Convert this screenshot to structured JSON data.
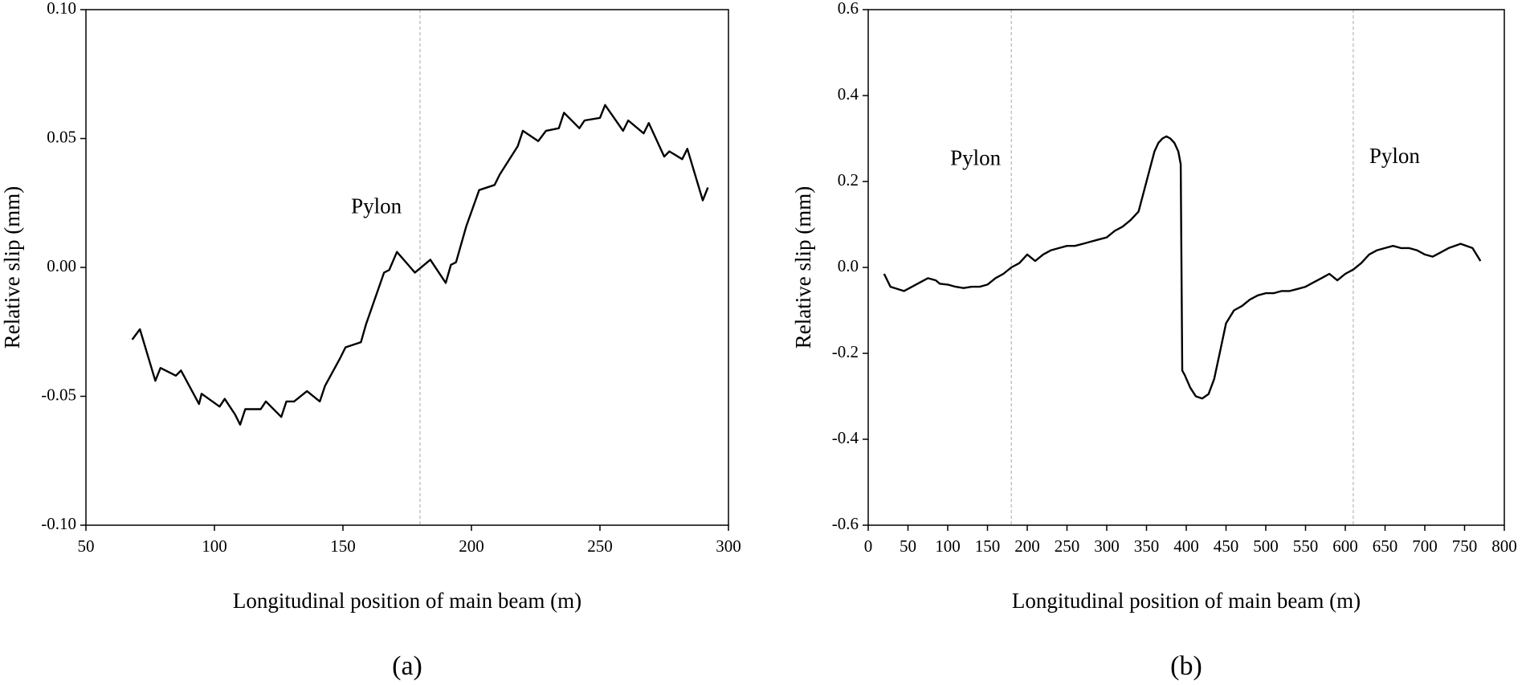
{
  "chart_data": [
    {
      "type": "line",
      "caption": "(a)",
      "x_label": "Longitudinal position of main beam (m)",
      "y_label": "Relative slip (mm)",
      "xlim": [
        50,
        300
      ],
      "xticks": [
        50,
        100,
        150,
        200,
        250,
        300
      ],
      "ylim": [
        -0.1,
        0.1
      ],
      "yticks": [
        {
          "value": -0.1,
          "label": "-0.10"
        },
        -0.05,
        {
          "value": 0,
          "label": "0.00"
        },
        0.05,
        {
          "value": 0.1,
          "label": "0.10"
        }
      ],
      "color": "#000000",
      "x": [
        68,
        71,
        77,
        79,
        85,
        87,
        94,
        95,
        102,
        104,
        108,
        110,
        112,
        118,
        120,
        126,
        128,
        131,
        136,
        141,
        143,
        149,
        151,
        157,
        159,
        166,
        168,
        171,
        178,
        184,
        190,
        192,
        194,
        198,
        203,
        209,
        211,
        218,
        220,
        226,
        229,
        234,
        236,
        242,
        244,
        250,
        252,
        259,
        261,
        267,
        269,
        275,
        277,
        282,
        284,
        290,
        292
      ],
      "values": [
        -0.028,
        -0.024,
        -0.044,
        -0.039,
        -0.042,
        -0.04,
        -0.053,
        -0.049,
        -0.054,
        -0.051,
        -0.057,
        -0.061,
        -0.055,
        -0.055,
        -0.052,
        -0.058,
        -0.052,
        -0.052,
        -0.048,
        -0.052,
        -0.046,
        -0.035,
        -0.031,
        -0.029,
        -0.022,
        -0.002,
        -0.001,
        0.006,
        -0.002,
        0.003,
        -0.006,
        0.001,
        0.002,
        0.016,
        0.03,
        0.032,
        0.036,
        0.047,
        0.053,
        0.049,
        0.053,
        0.054,
        0.06,
        0.054,
        0.057,
        0.058,
        0.063,
        0.053,
        0.057,
        0.052,
        0.056,
        0.043,
        0.045,
        0.042,
        0.046,
        0.026,
        0.031
      ],
      "vlines": [
        180
      ],
      "annotations": [
        {
          "text": "Pylon",
          "x": 163,
          "y": 0.023
        }
      ]
    },
    {
      "type": "line",
      "caption": "(b)",
      "x_label": "Longitudinal position of main beam (m)",
      "y_label": "Relative slip (mm)",
      "xlim": [
        0,
        800
      ],
      "xticks": [
        0,
        50,
        100,
        150,
        200,
        250,
        300,
        350,
        400,
        450,
        500,
        550,
        600,
        650,
        700,
        750,
        800
      ],
      "ylim": [
        -0.6,
        0.6
      ],
      "yticks": [
        -0.6,
        -0.4,
        -0.2,
        {
          "value": 0,
          "label": "0.0"
        },
        0.2,
        0.4,
        0.6
      ],
      "color": "#000000",
      "x": [
        20,
        28,
        45,
        60,
        75,
        85,
        90,
        100,
        110,
        120,
        130,
        140,
        150,
        160,
        170,
        180,
        190,
        200,
        210,
        220,
        230,
        240,
        250,
        260,
        270,
        280,
        290,
        300,
        310,
        320,
        330,
        340,
        350,
        360,
        365,
        370,
        375,
        380,
        385,
        390,
        393,
        395,
        398,
        405,
        412,
        420,
        428,
        435,
        442,
        450,
        460,
        470,
        480,
        490,
        500,
        510,
        520,
        530,
        540,
        550,
        560,
        570,
        580,
        590,
        600,
        610,
        620,
        630,
        640,
        650,
        660,
        670,
        680,
        690,
        700,
        710,
        720,
        730,
        745,
        760,
        770
      ],
      "values": [
        -0.015,
        -0.045,
        -0.055,
        -0.04,
        -0.025,
        -0.03,
        -0.038,
        -0.04,
        -0.045,
        -0.048,
        -0.045,
        -0.045,
        -0.04,
        -0.025,
        -0.015,
        0.0,
        0.01,
        0.03,
        0.015,
        0.03,
        0.04,
        0.045,
        0.05,
        0.05,
        0.055,
        0.06,
        0.065,
        0.07,
        0.085,
        0.095,
        0.11,
        0.13,
        0.2,
        0.27,
        0.29,
        0.3,
        0.305,
        0.3,
        0.29,
        0.27,
        0.24,
        -0.24,
        -0.25,
        -0.28,
        -0.3,
        -0.305,
        -0.295,
        -0.26,
        -0.2,
        -0.13,
        -0.1,
        -0.09,
        -0.075,
        -0.065,
        -0.06,
        -0.06,
        -0.055,
        -0.055,
        -0.05,
        -0.045,
        -0.035,
        -0.025,
        -0.015,
        -0.03,
        -0.015,
        -0.005,
        0.01,
        0.03,
        0.04,
        0.045,
        0.05,
        0.045,
        0.045,
        0.04,
        0.03,
        0.025,
        0.035,
        0.045,
        0.055,
        0.045,
        0.015
      ],
      "vlines": [
        180,
        610
      ],
      "annotations": [
        {
          "text": "Pylon",
          "x": 135,
          "y": 0.25
        },
        {
          "text": "Pylon",
          "x": 662,
          "y": 0.255
        }
      ]
    }
  ]
}
